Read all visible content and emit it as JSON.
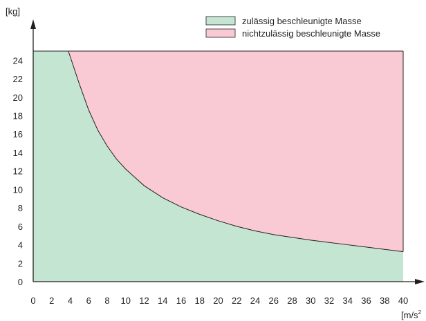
{
  "chart_data": {
    "type": "area",
    "x": [
      0,
      2,
      4,
      6,
      8,
      10,
      12,
      14,
      16,
      18,
      20,
      22,
      24,
      26,
      28,
      30,
      32,
      34,
      36,
      38,
      40
    ],
    "xticks": [
      "0",
      "2",
      "4",
      "6",
      "8",
      "10",
      "12",
      "14",
      "16",
      "18",
      "20",
      "22",
      "24",
      "26",
      "28",
      "30",
      "32",
      "34",
      "36",
      "38",
      "40"
    ],
    "yticks": [
      "0",
      "2",
      "4",
      "6",
      "8",
      "10",
      "12",
      "14",
      "16",
      "18",
      "20",
      "22",
      "24"
    ],
    "xlim": [
      0,
      40
    ],
    "ylim": [
      0,
      25
    ],
    "ylabel": "[kg]",
    "xlabel_unit": "[m/s",
    "xlabel_sup": "2",
    "boundary": {
      "x": [
        3.8,
        5,
        6,
        7,
        8,
        9,
        10,
        12,
        14,
        16,
        18,
        20,
        22,
        24,
        26,
        28,
        30,
        32,
        34,
        36,
        38,
        40
      ],
      "y": [
        25,
        21.4,
        18.6,
        16.4,
        14.7,
        13.3,
        12.2,
        10.4,
        9.1,
        8.1,
        7.3,
        6.6,
        6.0,
        5.5,
        5.1,
        4.8,
        4.5,
        4.25,
        4.0,
        3.75,
        3.5,
        3.25
      ]
    },
    "series": [
      {
        "name": "zulässig beschleunigte Masse",
        "color": "#c4e5d2"
      },
      {
        "name": "nichtzulässig beschleunigte Masse",
        "color": "#f9c9d4"
      }
    ],
    "legend_position": "top-right",
    "grid": false
  }
}
